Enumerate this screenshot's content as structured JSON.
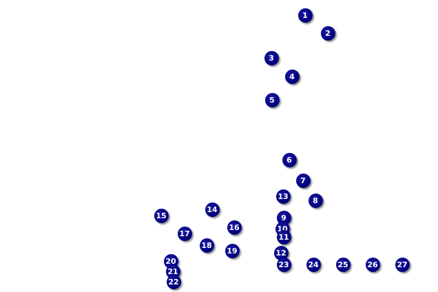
{
  "marker_color": "#000080",
  "markers": [
    "1",
    "2",
    "3",
    "4",
    "5",
    "6",
    "7",
    "8",
    "9",
    "10",
    "11",
    "12",
    "13",
    "14",
    "15",
    "16",
    "17",
    "18",
    "19",
    "20",
    "21",
    "22",
    "23",
    "24",
    "25",
    "26",
    "27"
  ]
}
